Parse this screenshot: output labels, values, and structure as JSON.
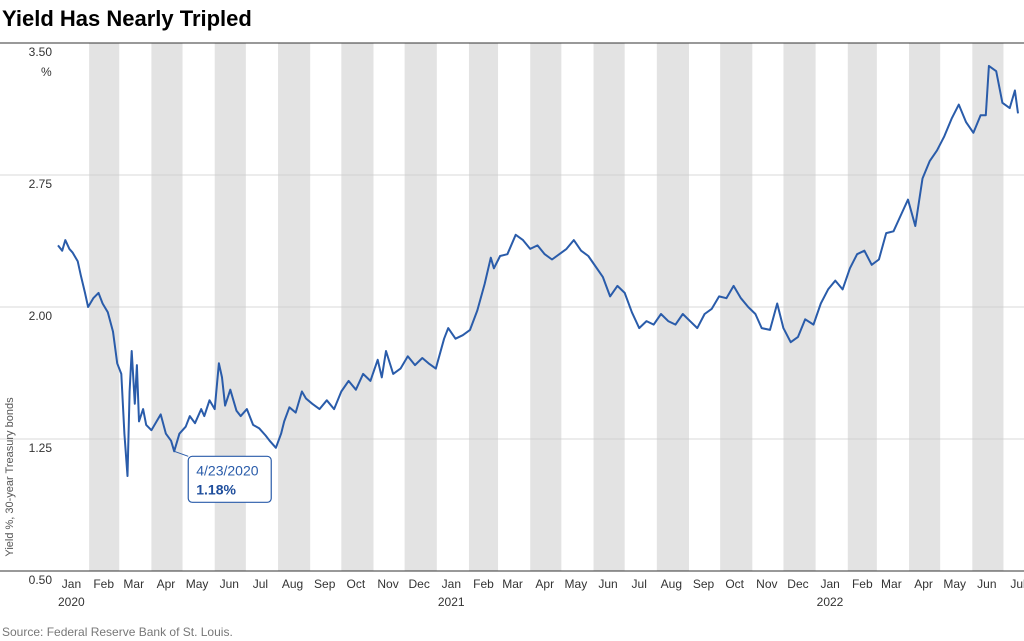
{
  "chart_data": {
    "type": "line",
    "title": "Yield Has Nearly Tripled",
    "ylabel": "Yield %, 30-year Treasury bonds",
    "yunit": "%",
    "ylim": [
      0.5,
      3.5
    ],
    "yticks": [
      "3.50",
      "2.75",
      "2.00",
      "1.25",
      "0.50"
    ],
    "xlim": [
      "2020-01-02",
      "2022-07-15"
    ],
    "month_labels": [
      {
        "label": "Jan",
        "date": "2020-01-15"
      },
      {
        "label": "Feb",
        "date": "2020-02-15"
      },
      {
        "label": "Mar",
        "date": "2020-03-15"
      },
      {
        "label": "Apr",
        "date": "2020-04-15"
      },
      {
        "label": "May",
        "date": "2020-05-15"
      },
      {
        "label": "Jun",
        "date": "2020-06-15"
      },
      {
        "label": "Jul",
        "date": "2020-07-15"
      },
      {
        "label": "Aug",
        "date": "2020-08-15"
      },
      {
        "label": "Sep",
        "date": "2020-09-15"
      },
      {
        "label": "Oct",
        "date": "2020-10-15"
      },
      {
        "label": "Nov",
        "date": "2020-11-15"
      },
      {
        "label": "Dec",
        "date": "2020-12-15"
      },
      {
        "label": "Jan",
        "date": "2021-01-15"
      },
      {
        "label": "Feb",
        "date": "2021-02-15"
      },
      {
        "label": "Mar",
        "date": "2021-03-15"
      },
      {
        "label": "Apr",
        "date": "2021-04-15"
      },
      {
        "label": "May",
        "date": "2021-05-15"
      },
      {
        "label": "Jun",
        "date": "2021-06-15"
      },
      {
        "label": "Jul",
        "date": "2021-07-15"
      },
      {
        "label": "Aug",
        "date": "2021-08-15"
      },
      {
        "label": "Sep",
        "date": "2021-09-15"
      },
      {
        "label": "Oct",
        "date": "2021-10-15"
      },
      {
        "label": "Nov",
        "date": "2021-11-15"
      },
      {
        "label": "Dec",
        "date": "2021-12-15"
      },
      {
        "label": "Jan",
        "date": "2022-01-15"
      },
      {
        "label": "Feb",
        "date": "2022-02-15"
      },
      {
        "label": "Mar",
        "date": "2022-03-15"
      },
      {
        "label": "Apr",
        "date": "2022-04-15"
      },
      {
        "label": "May",
        "date": "2022-05-15"
      },
      {
        "label": "Jun",
        "date": "2022-06-15"
      },
      {
        "label": "Jul",
        "date": "2022-07-15"
      }
    ],
    "year_labels": [
      {
        "label": "2020",
        "date": "2020-01-02"
      },
      {
        "label": "2021",
        "date": "2021-01-02"
      },
      {
        "label": "2022",
        "date": "2022-01-02"
      }
    ],
    "shaded_months": [
      "2020-02",
      "2020-04",
      "2020-06",
      "2020-08",
      "2020-10",
      "2020-12",
      "2021-02",
      "2021-04",
      "2021-06",
      "2021-08",
      "2021-10",
      "2021-12",
      "2022-02",
      "2022-04",
      "2022-06"
    ],
    "grid": true,
    "legend": "none",
    "colors": {
      "line": "#2a5caa",
      "shade": "#e3e3e3",
      "grid": "#cccccc"
    },
    "series": [
      {
        "x": [
          "2020-01-02",
          "2020-01-06",
          "2020-01-09",
          "2020-01-13",
          "2020-01-16",
          "2020-01-21",
          "2020-01-24",
          "2020-01-28",
          "2020-01-31",
          "2020-02-05",
          "2020-02-10",
          "2020-02-14",
          "2020-02-19",
          "2020-02-24",
          "2020-02-28",
          "2020-03-03",
          "2020-03-06",
          "2020-03-09",
          "2020-03-11",
          "2020-03-13",
          "2020-03-16",
          "2020-03-18",
          "2020-03-20",
          "2020-03-24",
          "2020-03-27",
          "2020-04-01",
          "2020-04-06",
          "2020-04-10",
          "2020-04-15",
          "2020-04-20",
          "2020-04-23",
          "2020-04-28",
          "2020-05-04",
          "2020-05-08",
          "2020-05-13",
          "2020-05-19",
          "2020-05-22",
          "2020-05-27",
          "2020-06-01",
          "2020-06-05",
          "2020-06-08",
          "2020-06-11",
          "2020-06-16",
          "2020-06-22",
          "2020-06-26",
          "2020-07-02",
          "2020-07-08",
          "2020-07-14",
          "2020-07-20",
          "2020-07-24",
          "2020-07-30",
          "2020-08-04",
          "2020-08-07",
          "2020-08-12",
          "2020-08-18",
          "2020-08-24",
          "2020-08-28",
          "2020-09-03",
          "2020-09-10",
          "2020-09-17",
          "2020-09-24",
          "2020-10-01",
          "2020-10-08",
          "2020-10-15",
          "2020-10-22",
          "2020-10-29",
          "2020-11-05",
          "2020-11-09",
          "2020-11-13",
          "2020-11-20",
          "2020-11-27",
          "2020-12-04",
          "2020-12-11",
          "2020-12-18",
          "2020-12-24",
          "2020-12-31",
          "2021-01-08",
          "2021-01-12",
          "2021-01-19",
          "2021-01-26",
          "2021-02-02",
          "2021-02-09",
          "2021-02-16",
          "2021-02-22",
          "2021-02-25",
          "2021-03-03",
          "2021-03-10",
          "2021-03-18",
          "2021-03-25",
          "2021-04-01",
          "2021-04-08",
          "2021-04-15",
          "2021-04-22",
          "2021-04-29",
          "2021-05-06",
          "2021-05-13",
          "2021-05-20",
          "2021-05-27",
          "2021-06-03",
          "2021-06-10",
          "2021-06-17",
          "2021-06-24",
          "2021-07-01",
          "2021-07-08",
          "2021-07-15",
          "2021-07-22",
          "2021-07-29",
          "2021-08-05",
          "2021-08-12",
          "2021-08-19",
          "2021-08-26",
          "2021-09-02",
          "2021-09-09",
          "2021-09-16",
          "2021-09-23",
          "2021-09-30",
          "2021-10-07",
          "2021-10-14",
          "2021-10-21",
          "2021-10-28",
          "2021-11-04",
          "2021-11-10",
          "2021-11-18",
          "2021-11-25",
          "2021-12-01",
          "2021-12-08",
          "2021-12-15",
          "2021-12-22",
          "2021-12-30",
          "2022-01-06",
          "2022-01-13",
          "2022-01-20",
          "2022-01-27",
          "2022-02-03",
          "2022-02-10",
          "2022-02-17",
          "2022-02-24",
          "2022-03-03",
          "2022-03-10",
          "2022-03-17",
          "2022-03-24",
          "2022-03-31",
          "2022-04-07",
          "2022-04-14",
          "2022-04-21",
          "2022-04-28",
          "2022-05-05",
          "2022-05-12",
          "2022-05-19",
          "2022-05-26",
          "2022-06-02",
          "2022-06-09",
          "2022-06-14",
          "2022-06-17",
          "2022-06-24",
          "2022-06-30",
          "2022-07-07",
          "2022-07-12",
          "2022-07-15"
        ],
        "y": [
          2.35,
          2.32,
          2.38,
          2.33,
          2.31,
          2.26,
          2.18,
          2.08,
          2.0,
          2.05,
          2.08,
          2.02,
          1.97,
          1.86,
          1.68,
          1.62,
          1.28,
          1.04,
          1.52,
          1.75,
          1.45,
          1.67,
          1.35,
          1.42,
          1.33,
          1.3,
          1.35,
          1.39,
          1.28,
          1.24,
          1.18,
          1.28,
          1.32,
          1.38,
          1.34,
          1.42,
          1.38,
          1.47,
          1.42,
          1.68,
          1.6,
          1.44,
          1.53,
          1.41,
          1.38,
          1.42,
          1.33,
          1.31,
          1.27,
          1.24,
          1.2,
          1.28,
          1.35,
          1.43,
          1.4,
          1.52,
          1.48,
          1.45,
          1.42,
          1.47,
          1.42,
          1.52,
          1.58,
          1.53,
          1.62,
          1.58,
          1.7,
          1.6,
          1.75,
          1.62,
          1.65,
          1.72,
          1.67,
          1.71,
          1.68,
          1.65,
          1.82,
          1.88,
          1.82,
          1.84,
          1.87,
          1.98,
          2.13,
          2.28,
          2.22,
          2.29,
          2.3,
          2.41,
          2.38,
          2.33,
          2.35,
          2.3,
          2.27,
          2.3,
          2.33,
          2.38,
          2.32,
          2.29,
          2.23,
          2.17,
          2.06,
          2.12,
          2.08,
          1.97,
          1.88,
          1.92,
          1.9,
          1.96,
          1.92,
          1.9,
          1.96,
          1.92,
          1.88,
          1.96,
          1.99,
          2.06,
          2.05,
          2.12,
          2.05,
          2.0,
          1.96,
          1.88,
          1.87,
          2.02,
          1.88,
          1.8,
          1.83,
          1.93,
          1.9,
          2.02,
          2.1,
          2.15,
          2.1,
          2.22,
          2.3,
          2.32,
          2.24,
          2.27,
          2.42,
          2.43,
          2.52,
          2.61,
          2.46,
          2.73,
          2.83,
          2.89,
          2.97,
          3.07,
          3.15,
          3.05,
          2.99,
          3.09,
          3.09,
          3.37,
          3.34,
          3.16,
          3.13,
          3.23,
          3.1
        ]
      }
    ],
    "annotation": {
      "date_text": "4/23/2020",
      "value_text": "1.18%",
      "x": "2020-04-23",
      "y": 1.18
    },
    "source": "Source: Federal Reserve Bank of St. Louis."
  }
}
